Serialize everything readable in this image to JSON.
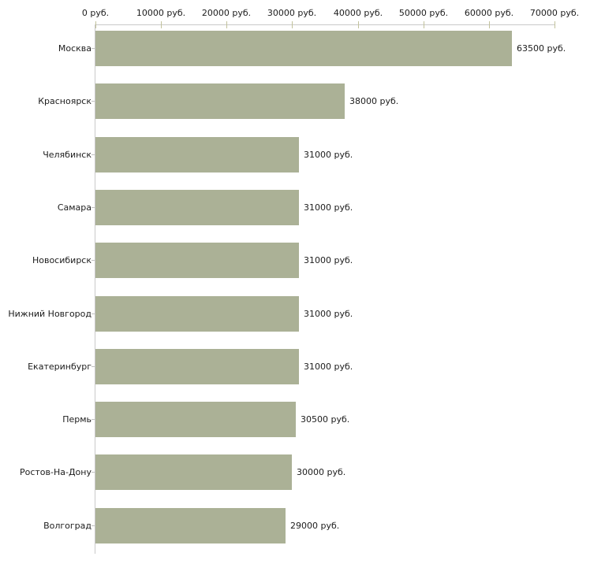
{
  "chart_data": {
    "type": "bar",
    "orientation": "horizontal",
    "title": "",
    "unit": "руб.",
    "categories": [
      "Москва",
      "Красноярск",
      "Челябинск",
      "Самара",
      "Новосибирск",
      "Нижний Новгород",
      "Екатеринбург",
      "Пермь",
      "Ростов-На-Дону",
      "Волгоград"
    ],
    "values": [
      63500,
      38000,
      31000,
      31000,
      31000,
      31000,
      31000,
      30500,
      30000,
      29000
    ],
    "value_labels": [
      "63500 руб.",
      "38000 руб.",
      "31000 руб.",
      "31000 руб.",
      "31000 руб.",
      "31000 руб.",
      "31000 руб.",
      "30500 руб.",
      "30000 руб.",
      "29000 руб."
    ],
    "x_axis": {
      "position": "top",
      "ticks": [
        0,
        10000,
        20000,
        30000,
        40000,
        50000,
        60000,
        70000
      ],
      "tick_labels": [
        "0 руб.",
        "10000 руб.",
        "20000 руб.",
        "30000 руб.",
        "40000 руб.",
        "50000 руб.",
        "60000 руб.",
        "70000 руб."
      ]
    },
    "xlim": [
      0,
      70000
    ],
    "grid": false,
    "legend": null,
    "colors": {
      "bar": "#abb196",
      "axis_line": "#c9c9c9",
      "x_tick": "#c2c29c",
      "y_tick": "#c0c0c0",
      "text": "#1c1c1c",
      "background": "#ffffff"
    }
  }
}
